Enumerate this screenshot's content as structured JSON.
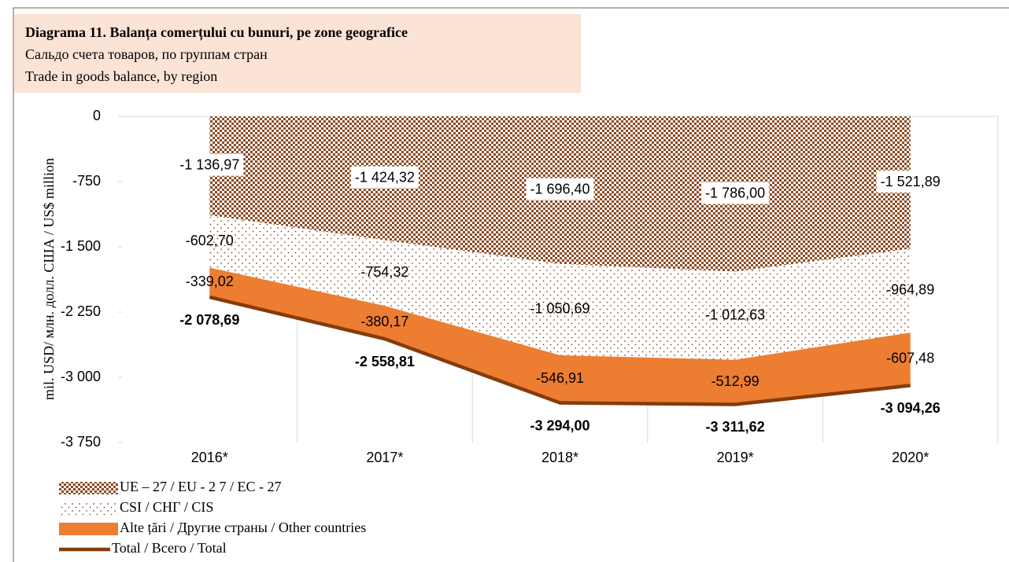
{
  "chart_data": {
    "type": "area",
    "title": "Diagrama 11. Balanța comerțului cu bunuri, pe zone geografice",
    "subtitle": [
      "Сальдо счета товаров, по группам стран",
      "Trade in goods balance, by region"
    ],
    "ylabel": "mil. USD/ млн. долл. США / US$ million",
    "categories": [
      "2016*",
      "2017*",
      "2018*",
      "2019*",
      "2020*"
    ],
    "ylim": [
      -3750,
      0
    ],
    "yticks": [
      0,
      -750,
      {
        "value": -1500,
        "label": "-1 500"
      },
      {
        "value": -2250,
        "label": "-2 250"
      },
      {
        "value": -3000,
        "label": "-3 000"
      },
      {
        "value": -3750,
        "label": "-3 750"
      }
    ],
    "series": [
      {
        "name": "UE – 27 / EU - 2 7 / ЕС - 27",
        "type": "area",
        "color": "#8c4a24",
        "pattern": "checker",
        "values": [
          -1136.97,
          -1424.32,
          -1696.4,
          -1786.0,
          -1521.89
        ],
        "value_labels": [
          "-1 136,97",
          "-1 424,32",
          "-1 696,40",
          "-1 786,00",
          "-1 521,89"
        ]
      },
      {
        "name": "CSI / СНГ / CIS",
        "type": "area",
        "color": "#8c4a24",
        "pattern": "dots",
        "values": [
          -602.7,
          -754.32,
          -1050.69,
          -1012.63,
          -964.89
        ],
        "value_labels": [
          "-602,70",
          "-754,32",
          "-1 050,69",
          "-1 012,63",
          "-964,89"
        ]
      },
      {
        "name": "Alte țări / Другие страны / Other countries",
        "type": "area",
        "color": "#ed7d31",
        "pattern": "solid",
        "values": [
          -339.02,
          -380.17,
          -546.91,
          -512.99,
          -607.48
        ],
        "value_labels": [
          "-339,02",
          "-380,17",
          "-546,91",
          "-512,99",
          "-607,48"
        ]
      },
      {
        "name": "Total / Всего / Total",
        "type": "line",
        "color": "#843c0c",
        "values": [
          -2078.69,
          -2558.81,
          -3294.0,
          -3311.62,
          -3094.26
        ],
        "value_labels": [
          "-2 078,69",
          "-2 558,81",
          "-3 294,00",
          "-3 311,62",
          "-3 094,26"
        ]
      }
    ]
  }
}
